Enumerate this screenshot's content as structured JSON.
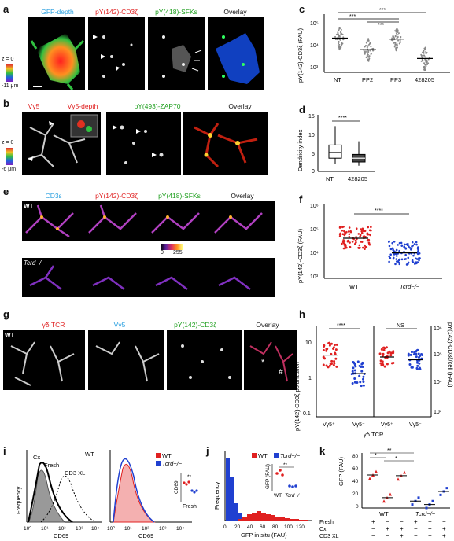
{
  "panels": {
    "a": {
      "letter": "a",
      "titles": [
        "GFP-depth",
        "pY(142)-CD3ζ",
        "pY(418)-SFKs",
        "Overlay"
      ],
      "colors": [
        "#2aa0e0",
        "#e02020",
        "#20a020",
        "#111111"
      ],
      "scale": {
        "top": "z = 0",
        "bottom": "-11 μm"
      }
    },
    "b": {
      "letter": "b",
      "titles": [
        "Vγ5",
        "Vγ5-depth",
        "pY(493)-ZAP70",
        "Overlay"
      ],
      "colors": [
        "#e02020",
        "#e02020",
        "#20a020",
        "#111111"
      ],
      "scale": {
        "top": "z = 0",
        "bottom": "-6 μm"
      }
    },
    "c": {
      "letter": "c"
    },
    "d": {
      "letter": "d"
    },
    "e": {
      "letter": "e",
      "titles": [
        "CD3ε",
        "pY(142)-CD3ζ",
        "pY(418)-SFKs",
        "Overlay"
      ],
      "colors": [
        "#2aa0e0",
        "#e02020",
        "#20a020",
        "#111111"
      ],
      "row_labels": [
        "WT",
        "Tcrd−/−"
      ],
      "colorbar": {
        "min": "0",
        "max": "255"
      }
    },
    "f": {
      "letter": "f"
    },
    "g": {
      "letter": "g",
      "titles": [
        "γδ TCR",
        "Vγ5",
        "pY(142)-CD3ζ",
        "Overlay"
      ],
      "colors": [
        "#e02020",
        "#2aa0e0",
        "#20a020",
        "#111111"
      ],
      "row_label": "WT",
      "markers": [
        "*",
        "#"
      ]
    },
    "h": {
      "letter": "h"
    },
    "i": {
      "letter": "i"
    },
    "j": {
      "letter": "j"
    },
    "k": {
      "letter": "k"
    }
  },
  "chart_data": [
    {
      "id": "c",
      "type": "scatter",
      "ylabel": "pY(142)-CD3ζ (FAU)",
      "categories": [
        "NT",
        "PP2",
        "PP3",
        "428205"
      ],
      "yscale": "log",
      "ylim": [
        1000,
        100000
      ],
      "yticks": [
        "10⁵",
        "10⁴",
        "10³"
      ],
      "medians": [
        15000,
        6000,
        14000,
        3000
      ],
      "significance": [
        "***",
        "***",
        "***"
      ]
    },
    {
      "id": "d",
      "type": "box",
      "ylabel": "Dendricity index",
      "categories": [
        "NT",
        "428205"
      ],
      "ylim": [
        0,
        15
      ],
      "yticks": [
        "0",
        "5",
        "10",
        "15"
      ],
      "boxes": [
        {
          "min": 2,
          "q1": 3.5,
          "median": 5,
          "q3": 7,
          "max": 12
        },
        {
          "min": 1.5,
          "q1": 2.5,
          "median": 3.5,
          "q3": 4.5,
          "max": 8
        }
      ],
      "significance": "****"
    },
    {
      "id": "f",
      "type": "scatter",
      "ylabel": "pY(142)-CD3ζ (FAU)",
      "categories": [
        "WT",
        "Tcrd−/−"
      ],
      "yscale": "log",
      "ylim": [
        1000,
        1000000
      ],
      "yticks": [
        "10⁶",
        "10⁵",
        "10⁴",
        "10³"
      ],
      "medians": [
        50000,
        12000
      ],
      "significance": "****"
    },
    {
      "id": "h",
      "type": "scatter",
      "ylabel_left": "pY(142)-CD3ζ polarization",
      "ylabel_right": "pY(142)-CD3ζ/cell (FAU)",
      "xlabel": "γδ TCR",
      "categories": [
        "Vγ5⁺",
        "Vγ5⁻",
        "Vγ5⁺",
        "Vγ5⁻"
      ],
      "yticks_left": [
        "10",
        "1",
        "0.1"
      ],
      "yticks_right": [
        "10⁶",
        "10⁵",
        "10⁴",
        "10³"
      ],
      "medians": [
        5,
        1.5,
        10,
        8
      ],
      "series_colors": [
        "#e02020",
        "#2040d0",
        "#e02020",
        "#2040d0"
      ],
      "significance": [
        "****",
        "NS"
      ]
    },
    {
      "id": "i1",
      "type": "histogram",
      "xlabel": "CD69",
      "ylabel": "Frequency",
      "legend": [
        "Cx",
        "Fresh",
        "CD3 XL"
      ],
      "tag": "WT",
      "xticks": [
        "10⁰",
        "10¹",
        "10²",
        "10³",
        "10⁴"
      ]
    },
    {
      "id": "i2",
      "type": "histogram",
      "xlabel": "CD69",
      "legend": [
        "WT",
        "Tcrd−/−"
      ],
      "series_colors": [
        "#e02020",
        "#2040d0"
      ],
      "xticks": [
        "10⁰",
        "10¹",
        "10²",
        "10³",
        "10⁴"
      ],
      "inset": {
        "ylabel": "CD69",
        "xlabel": "Fresh",
        "significance": "**"
      }
    },
    {
      "id": "j",
      "type": "histogram",
      "xlabel": "GFP in situ (FAU)",
      "ylabel": "Frequency",
      "legend": [
        "WT",
        "Tcrd−/−"
      ],
      "series_colors": [
        "#e02020",
        "#2040d0"
      ],
      "xticks": [
        "0",
        "20",
        "40",
        "60",
        "80",
        "100",
        "120"
      ],
      "inset": {
        "ylabel": "GFP (FAU)",
        "categories": [
          "WT",
          "Tcrd−/−"
        ],
        "significance": "**"
      }
    },
    {
      "id": "k",
      "type": "scatter",
      "ylabel": "GFP (FAU)",
      "yticks": [
        "0",
        "20",
        "40",
        "60",
        "80"
      ],
      "groups": [
        "WT",
        "Tcrd−/−"
      ],
      "rows": [
        {
          "label": "Fresh",
          "values": [
            "+",
            "−",
            "−",
            "+",
            "−",
            "−"
          ]
        },
        {
          "label": "Cx",
          "values": [
            "−",
            "+",
            "+",
            "−",
            "+",
            "+"
          ]
        },
        {
          "label": "CD3 XL",
          "values": [
            "−",
            "−",
            "+",
            "−",
            "−",
            "+"
          ]
        }
      ],
      "means": [
        48,
        15,
        47,
        10,
        5,
        24
      ],
      "series_colors": [
        "#e02020",
        "#e02020",
        "#e02020",
        "#2040d0",
        "#2040d0",
        "#2040d0"
      ],
      "significance": [
        "*",
        "**",
        "*"
      ]
    }
  ]
}
